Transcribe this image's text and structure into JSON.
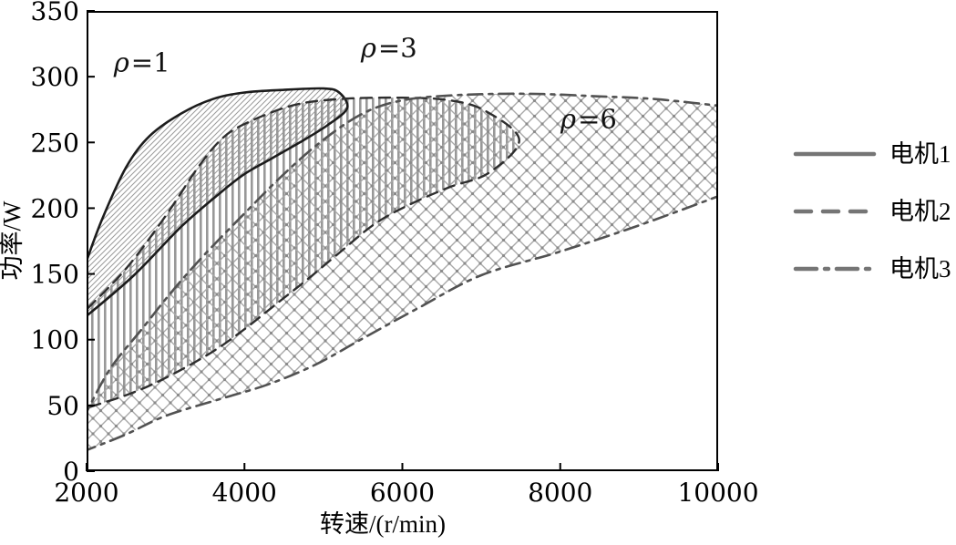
{
  "chart_data": {
    "type": "area",
    "title": "",
    "xlabel": "转速/(r/min)",
    "ylabel": "功率/W",
    "xlim": [
      2000,
      10000
    ],
    "ylim": [
      0,
      350
    ],
    "x_ticks": [
      2000,
      4000,
      6000,
      8000,
      10000
    ],
    "y_ticks": [
      0,
      50,
      100,
      150,
      200,
      250,
      300,
      350
    ],
    "grid": false,
    "legend_position": "outside-right",
    "series": [
      {
        "name": "电机1",
        "region_label": "ρ=1",
        "line_style": "solid",
        "hatch": "diagonal",
        "upper_boundary": [
          [
            2000,
            160
          ],
          [
            2200,
            192
          ],
          [
            2500,
            231
          ],
          [
            2800,
            255
          ],
          [
            3200,
            272
          ],
          [
            3600,
            283
          ],
          [
            4000,
            288
          ],
          [
            4500,
            290
          ],
          [
            5000,
            291
          ],
          [
            5200,
            288
          ]
        ],
        "tip": [
          5300,
          276
        ],
        "lower_boundary": [
          [
            5050,
            263
          ],
          [
            4700,
            250
          ],
          [
            4350,
            238
          ],
          [
            4000,
            226
          ],
          [
            3700,
            212
          ],
          [
            3200,
            186
          ],
          [
            2600,
            149
          ],
          [
            2000,
            118
          ]
        ]
      },
      {
        "name": "电机2",
        "region_label": "ρ=3",
        "line_style": "dashed",
        "hatch": "vertical",
        "upper_boundary": [
          [
            2000,
            123
          ],
          [
            2500,
            154
          ],
          [
            3000,
            194
          ],
          [
            3400,
            230
          ],
          [
            3700,
            252
          ],
          [
            4000,
            264
          ],
          [
            4600,
            278
          ],
          [
            5200,
            283
          ],
          [
            6000,
            284
          ],
          [
            6600,
            282
          ],
          [
            7050,
            274
          ]
        ],
        "tip": [
          7480,
          252
        ],
        "lower_boundary": [
          [
            7100,
            227
          ],
          [
            6600,
            216
          ],
          [
            6100,
            203
          ],
          [
            5650,
            188
          ],
          [
            5200,
            166
          ],
          [
            4800,
            146
          ],
          [
            4400,
            127
          ],
          [
            4000,
            108
          ],
          [
            3600,
            91
          ],
          [
            3100,
            74
          ],
          [
            2600,
            60
          ],
          [
            2000,
            48
          ]
        ]
      },
      {
        "name": "电机3",
        "region_label": "ρ=6",
        "line_style": "dash-dot",
        "hatch": "cross",
        "upper_boundary": [
          [
            2000,
            45
          ],
          [
            2300,
            78
          ],
          [
            2700,
            108
          ],
          [
            3100,
            138
          ],
          [
            3500,
            165
          ],
          [
            4000,
            196
          ],
          [
            4500,
            226
          ],
          [
            5000,
            252
          ],
          [
            5500,
            272
          ],
          [
            6000,
            282
          ],
          [
            6700,
            286
          ],
          [
            7600,
            287
          ],
          [
            8500,
            285
          ],
          [
            9200,
            283
          ],
          [
            10000,
            278
          ]
        ],
        "tip": null,
        "lower_boundary": [
          [
            10000,
            209
          ],
          [
            9000,
            187
          ],
          [
            8000,
            167
          ],
          [
            7000,
            149
          ],
          [
            6200,
            124
          ],
          [
            5500,
            101
          ],
          [
            4900,
            81
          ],
          [
            4300,
            66
          ],
          [
            3700,
            55
          ],
          [
            3000,
            42
          ],
          [
            2500,
            28
          ],
          [
            2000,
            16
          ]
        ]
      }
    ],
    "annotations": [
      {
        "text": "ρ=1",
        "x": 2700,
        "y": 304
      },
      {
        "text": "ρ=3",
        "x": 5830,
        "y": 315
      },
      {
        "text": "ρ=6",
        "x": 8360,
        "y": 261
      }
    ]
  },
  "legend": {
    "items": [
      {
        "label": "电机1",
        "line_style": "solid"
      },
      {
        "label": "电机2",
        "line_style": "dashed"
      },
      {
        "label": "电机3",
        "line_style": "dash-dot"
      }
    ]
  },
  "styles": {
    "background": "#ffffff",
    "axis_color": "#000000",
    "solid_line_color": "#1c1c1c",
    "dashed_line_color": "#2e2e2e",
    "dashdot_line_color": "#525252",
    "diag_hatch_color": "#9a9a9a",
    "vert_hatch_color": "#989898",
    "cross_hatch_color": "#a8a8a8",
    "cross_dot_color": "#8a8a8a",
    "legend_sample_color": "#757575",
    "text_color": "#111111"
  }
}
